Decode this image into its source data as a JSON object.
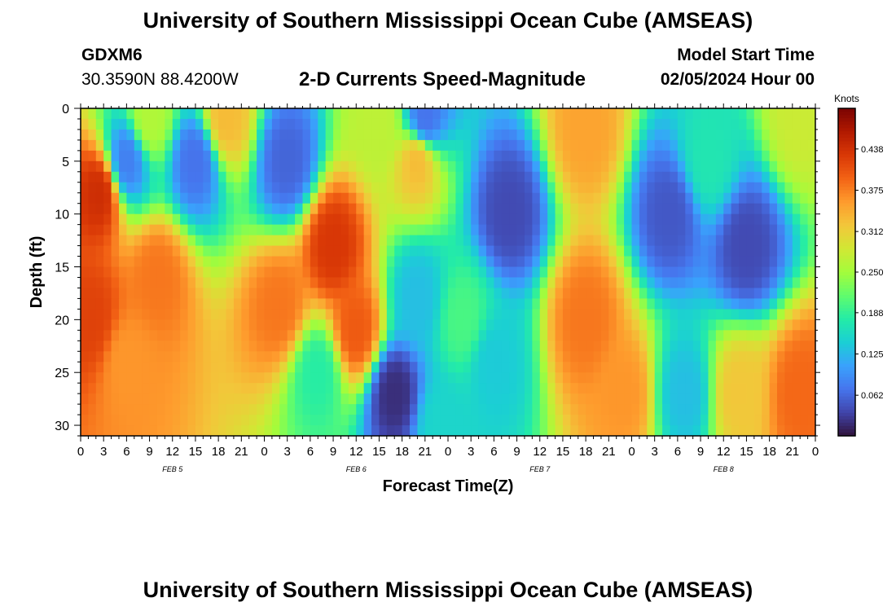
{
  "header": {
    "title": "University of Southern Mississippi Ocean Cube (AMSEAS)",
    "station": "GDXM6",
    "coords": "30.3590N  88.4200W",
    "subtitle": "2-D Currents Speed-Magnitude",
    "start_label": "Model Start Time",
    "start_time": "02/05/2024 Hour 00"
  },
  "footer": {
    "title": "University of Southern Mississippi Ocean Cube (AMSEAS)"
  },
  "chart_data": {
    "type": "heatmap",
    "title": "2-D Currents Speed-Magnitude",
    "xlabel": "Forecast Time(Z)",
    "ylabel": "Depth (ft)",
    "colorbar_label": "Knots",
    "x_range_hours": [
      0,
      96
    ],
    "y_range_ft": [
      0,
      31
    ],
    "x_tick_labels": [
      "0",
      "3",
      "6",
      "9",
      "12",
      "15",
      "18",
      "21",
      "0",
      "3",
      "6",
      "9",
      "12",
      "15",
      "18",
      "21",
      "0",
      "3",
      "6",
      "9",
      "12",
      "15",
      "18",
      "21",
      "0",
      "3",
      "6",
      "9",
      "12",
      "15",
      "18",
      "21",
      "0"
    ],
    "y_ticks": [
      0,
      5,
      10,
      15,
      20,
      25,
      30
    ],
    "date_labels": [
      {
        "label": "FEB 5",
        "hour": 12
      },
      {
        "label": "FEB 6",
        "hour": 36
      },
      {
        "label": "FEB 7",
        "hour": 60
      },
      {
        "label": "FEB 8",
        "hour": 84
      }
    ],
    "colorbar_ticks": [
      0.062,
      0.125,
      0.188,
      0.25,
      0.312,
      0.375,
      0.438
    ],
    "colorbar_range": [
      0,
      0.5
    ],
    "colormap": [
      "#30123b",
      "#4145ab",
      "#4675ed",
      "#39a2fc",
      "#1bcfd4",
      "#24eca6",
      "#61fc6c",
      "#a4fc3b",
      "#d1e834",
      "#f3c63a",
      "#fe9b2d",
      "#f36315",
      "#d93806",
      "#b11901",
      "#7a0402"
    ],
    "grid": false,
    "legend": "colorbar at right",
    "value_blobs_knots": [
      {
        "hour": 2.5,
        "depth_ft": 8,
        "speed": 0.44
      },
      {
        "hour": 1.5,
        "depth_ft": 20,
        "speed": 0.42
      },
      {
        "hour": 6,
        "depth_ft": 24,
        "speed": 0.36
      },
      {
        "hour": 10,
        "depth_ft": 16,
        "speed": 0.38
      },
      {
        "hour": 6,
        "depth_ft": 5,
        "speed": 0.08
      },
      {
        "hour": 9,
        "depth_ft": 1,
        "speed": 0.26
      },
      {
        "hour": 19,
        "depth_ft": 1,
        "speed": 0.33
      },
      {
        "hour": 15,
        "depth_ft": 5,
        "speed": 0.07
      },
      {
        "hour": 27,
        "depth_ft": 5,
        "speed": 0.06
      },
      {
        "hour": 33,
        "depth_ft": 13,
        "speed": 0.43
      },
      {
        "hour": 26,
        "depth_ft": 19,
        "speed": 0.38
      },
      {
        "hour": 36,
        "depth_ft": 21,
        "speed": 0.4
      },
      {
        "hour": 31,
        "depth_ft": 25,
        "speed": 0.18
      },
      {
        "hour": 44,
        "depth_ft": 5,
        "speed": 0.33
      },
      {
        "hour": 45,
        "depth_ft": 1,
        "speed": 0.07
      },
      {
        "hour": 39,
        "depth_ft": 1,
        "speed": 0.27
      },
      {
        "hour": 41,
        "depth_ft": 27,
        "speed": 0.02
      },
      {
        "hour": 44,
        "depth_ft": 18,
        "speed": 0.13
      },
      {
        "hour": 50,
        "depth_ft": 20,
        "speed": 0.2
      },
      {
        "hour": 47,
        "depth_ft": 30,
        "speed": 0.15
      },
      {
        "hour": 56,
        "depth_ft": 10,
        "speed": 0.04
      },
      {
        "hour": 54,
        "depth_ft": 24,
        "speed": 0.14
      },
      {
        "hour": 66,
        "depth_ft": 2,
        "speed": 0.35
      },
      {
        "hour": 66,
        "depth_ft": 20,
        "speed": 0.38
      },
      {
        "hour": 71,
        "depth_ft": 27,
        "speed": 0.36
      },
      {
        "hour": 77,
        "depth_ft": 10,
        "speed": 0.05
      },
      {
        "hour": 79,
        "depth_ft": 27,
        "speed": 0.13
      },
      {
        "hour": 82,
        "depth_ft": 5,
        "speed": 0.17
      },
      {
        "hour": 86,
        "depth_ft": 27,
        "speed": 0.32
      },
      {
        "hour": 87,
        "depth_ft": 13,
        "speed": 0.04
      },
      {
        "hour": 94,
        "depth_ft": 27,
        "speed": 0.39
      },
      {
        "hour": 94,
        "depth_ft": 1,
        "speed": 0.28
      }
    ]
  }
}
